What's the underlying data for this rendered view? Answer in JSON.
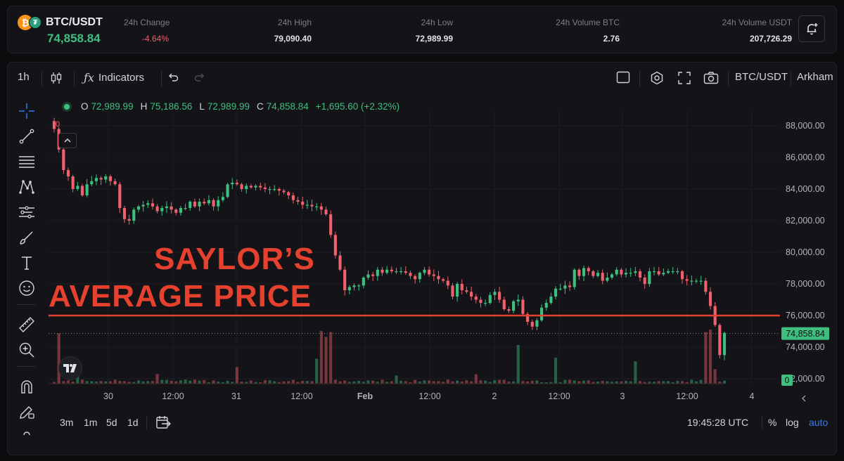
{
  "header": {
    "pair": "BTC/USDT",
    "last_price": "74,858.84",
    "stats": [
      {
        "label": "24h Change",
        "value": "-4.64%",
        "negative": true
      },
      {
        "label": "24h High",
        "value": "79,090.40"
      },
      {
        "label": "24h Low",
        "value": "72,989.99"
      },
      {
        "label": "24h Volume BTC",
        "value": "2.76"
      },
      {
        "label": "24h Volume USDT",
        "value": "207,726.29"
      }
    ]
  },
  "toolbar": {
    "interval": "1h",
    "indicators_label": "Indicators",
    "symbol": "BTC/USDT",
    "source": "Arkham"
  },
  "ohlc": {
    "open_key": "O",
    "open": "72,989.99",
    "high_key": "H",
    "high": "75,186.56",
    "low_key": "L",
    "low": "72,989.99",
    "close_key": "C",
    "close": "74,858.84",
    "change": "+1,695.60 (+2.32%)"
  },
  "annotation": {
    "line1": "SAYLOR’S",
    "line2": "AVERAGE PRICE",
    "level": 76000,
    "color": "#e5412e"
  },
  "volume_pane_label": "0",
  "collapse_icon": "chevron-up-icon",
  "chart_data": {
    "type": "candlestick",
    "y_axis_ticks": [
      "88,000.00",
      "86,000.00",
      "84,000.00",
      "82,000.00",
      "80,000.00",
      "78,000.00",
      "76,000.00",
      "74,000.00",
      "72,000.00"
    ],
    "x_axis_ticks": [
      "30",
      "12:00",
      "31",
      "12:00",
      "Feb",
      "12:00",
      "2",
      "12:00",
      "3",
      "12:00",
      "4"
    ],
    "ylim": [
      71500,
      89000
    ],
    "last_price_label": "74,858.84",
    "volume_label": "0",
    "up_color": "#3fbf7f",
    "down_color": "#f0616d",
    "grid": true,
    "closes": [
      87800,
      86500,
      85200,
      84800,
      84000,
      84200,
      83600,
      84300,
      84500,
      84700,
      84600,
      84800,
      84500,
      84300,
      82800,
      82100,
      82000,
      82700,
      82900,
      83000,
      83100,
      82900,
      82600,
      82800,
      82900,
      82700,
      82500,
      82800,
      82800,
      83200,
      82900,
      83200,
      83100,
      83300,
      82900,
      83300,
      83500,
      84300,
      84400,
      84300,
      84000,
      84200,
      84100,
      84200,
      84100,
      84000,
      84000,
      84000,
      83900,
      83800,
      83600,
      83300,
      83200,
      83000,
      83000,
      82900,
      82900,
      82700,
      82400,
      81100,
      79800,
      78900,
      77600,
      77800,
      77900,
      77900,
      78400,
      78600,
      78500,
      78900,
      78700,
      78900,
      78800,
      78800,
      78800,
      78700,
      78500,
      78300,
      78700,
      78900,
      78600,
      78500,
      78300,
      78200,
      77900,
      77200,
      78000,
      77600,
      77500,
      77200,
      77000,
      76800,
      76800,
      77300,
      77500,
      77000,
      76400,
      76300,
      76900,
      77000,
      76100,
      75600,
      75300,
      75700,
      76500,
      76800,
      77200,
      77700,
      77700,
      77900,
      77800,
      78900,
      78500,
      79000,
      78800,
      78500,
      78700,
      78200,
      78400,
      78600,
      78900,
      78600,
      78700,
      78700,
      78800,
      78400,
      78000,
      78800,
      78800,
      78600,
      78700,
      78800,
      78800,
      78800,
      78300,
      78200,
      78200,
      78200,
      78200,
      77500,
      76600,
      75400,
      73500,
      74900
    ],
    "low_points": [
      72989.99
    ],
    "last_close": 74858.84
  }
}
